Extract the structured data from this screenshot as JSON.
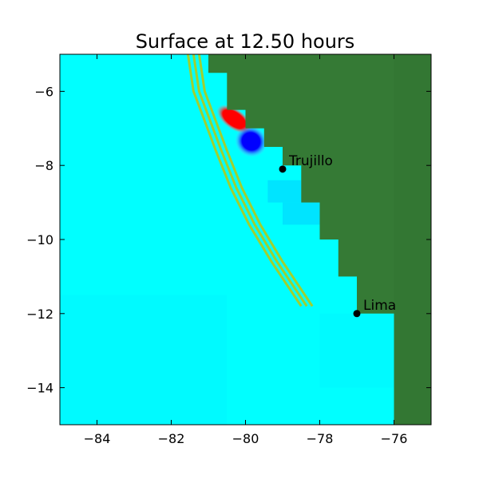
{
  "chart_data": {
    "type": "heatmap",
    "title": "Surface at 12.50 hours",
    "xlabel": "",
    "ylabel": "",
    "xlim": [
      -85,
      -75
    ],
    "ylim": [
      -15,
      -5
    ],
    "xticks": [
      -84,
      -82,
      -80,
      -78,
      -76
    ],
    "yticks": [
      -6,
      -8,
      -10,
      -12,
      -14
    ],
    "xtick_labels": [
      "−84",
      "−82",
      "−80",
      "−78",
      "−76"
    ],
    "ytick_labels": [
      "−6",
      "−8",
      "−10",
      "−12",
      "−14"
    ],
    "grid": false,
    "colors": {
      "ocean": "#00ffff",
      "ocean_alt": "#00f0ff",
      "land": "#357a35",
      "land_dark": "#2f702f",
      "fringe": "#8fcc20",
      "contour": "#9fd030",
      "wave_positive": "#ff0000",
      "wave_negative": "#0000ff"
    },
    "land_boundary": [
      [
        -81.0,
        -5.0
      ],
      [
        -81.0,
        -5.5
      ],
      [
        -80.5,
        -5.5
      ],
      [
        -80.5,
        -6.5
      ],
      [
        -80.0,
        -6.5
      ],
      [
        -80.0,
        -7.0
      ],
      [
        -79.5,
        -7.0
      ],
      [
        -79.5,
        -7.5
      ],
      [
        -79.0,
        -7.5
      ],
      [
        -79.0,
        -8.0
      ],
      [
        -78.5,
        -8.0
      ],
      [
        -78.5,
        -8.5
      ],
      [
        -78.5,
        -9.0
      ],
      [
        -78.0,
        -9.0
      ],
      [
        -78.0,
        -10.0
      ],
      [
        -77.5,
        -10.0
      ],
      [
        -77.5,
        -11.0
      ],
      [
        -77.0,
        -11.0
      ],
      [
        -77.0,
        -11.5
      ],
      [
        -77.0,
        -12.0
      ],
      [
        -76.0,
        -12.0
      ],
      [
        -76.0,
        -15.0
      ],
      [
        -75.0,
        -15.0
      ],
      [
        -75.0,
        -5.0
      ]
    ],
    "contour_lines": [
      [
        [
          -81.55,
          -5.0
        ],
        [
          -81.4,
          -6.0
        ],
        [
          -81.1,
          -6.8
        ],
        [
          -80.8,
          -7.6
        ],
        [
          -80.4,
          -8.6
        ],
        [
          -79.9,
          -9.6
        ],
        [
          -79.3,
          -10.6
        ],
        [
          -78.8,
          -11.35
        ],
        [
          -78.5,
          -11.8
        ]
      ],
      [
        [
          -81.4,
          -5.0
        ],
        [
          -81.25,
          -6.0
        ],
        [
          -80.95,
          -6.8
        ],
        [
          -80.65,
          -7.6
        ],
        [
          -80.25,
          -8.6
        ],
        [
          -79.75,
          -9.6
        ],
        [
          -79.15,
          -10.6
        ],
        [
          -78.65,
          -11.35
        ],
        [
          -78.35,
          -11.8
        ]
      ],
      [
        [
          -81.25,
          -5.0
        ],
        [
          -81.1,
          -6.0
        ],
        [
          -80.8,
          -6.8
        ],
        [
          -80.5,
          -7.6
        ],
        [
          -80.1,
          -8.6
        ],
        [
          -79.6,
          -9.6
        ],
        [
          -79.0,
          -10.6
        ],
        [
          -78.5,
          -11.35
        ],
        [
          -78.2,
          -11.8
        ]
      ]
    ],
    "wave_patches": [
      {
        "sign": "positive",
        "center": [
          -80.3,
          -6.75
        ],
        "radius": [
          0.55,
          0.28
        ],
        "rotation": 35
      },
      {
        "sign": "negative",
        "center": [
          -79.85,
          -7.35
        ],
        "radius": [
          0.45,
          0.42
        ],
        "rotation": 35
      }
    ],
    "points": [
      {
        "name": "Trujillo",
        "lon": -79.0,
        "lat": -8.1
      },
      {
        "name": "Lima",
        "lon": -77.0,
        "lat": -12.0
      }
    ]
  }
}
